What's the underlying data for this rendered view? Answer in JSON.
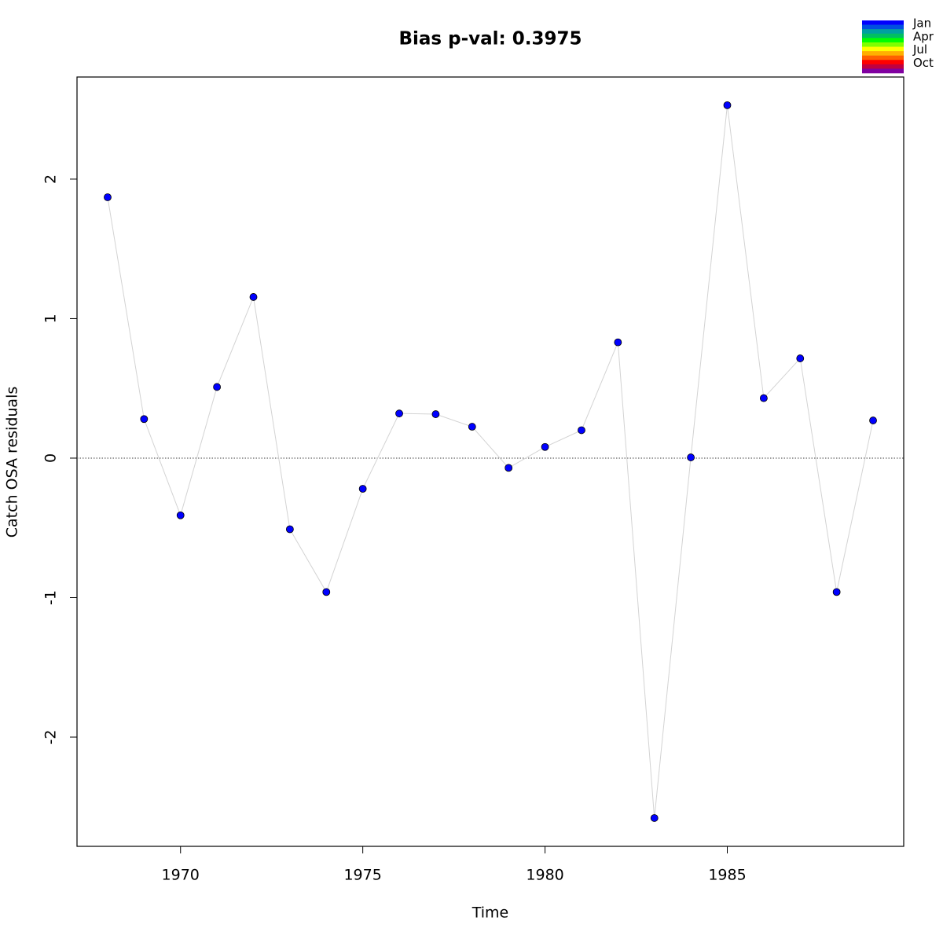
{
  "chart_data": {
    "type": "line",
    "title": "Bias p-val: 0.3975",
    "title_color": "#228b22",
    "x_label": "Time",
    "y_label": "Catch OSA residuals",
    "x": [
      1968,
      1969,
      1970,
      1971,
      1972,
      1973,
      1974,
      1975,
      1976,
      1977,
      1978,
      1979,
      1980,
      1981,
      1982,
      1983,
      1984,
      1985,
      1986,
      1987,
      1988,
      1989
    ],
    "series": [
      {
        "color": "#0000ff",
        "line_color": "#d3d3d3",
        "values": [
          1.87,
          0.28,
          -0.41,
          0.51,
          1.155,
          -0.51,
          -0.96,
          -0.22,
          0.32,
          0.315,
          0.225,
          -0.07,
          0.08,
          0.2,
          0.83,
          -2.58,
          0.005,
          2.53,
          0.43,
          0.715,
          -0.96,
          0.27
        ]
      }
    ],
    "reference_line": 0,
    "xlim": [
      1967.16,
      1989.84
    ],
    "ylim": [
      -2.783,
      2.732
    ],
    "xticks": [
      1970,
      1975,
      1980,
      1985
    ],
    "yticks": [
      -2,
      -1,
      0,
      1,
      2
    ],
    "legend": {
      "position": "top-right",
      "labels": [
        "Jan",
        "Apr",
        "Jul",
        "Oct"
      ],
      "colors": [
        "#0000FF",
        "#0050E0",
        "#00A0A0",
        "#00C060",
        "#00FF00",
        "#80FF00",
        "#FFFF00",
        "#FFB000",
        "#FF6000",
        "#FF0000",
        "#C00040",
        "#8000A0"
      ]
    }
  }
}
